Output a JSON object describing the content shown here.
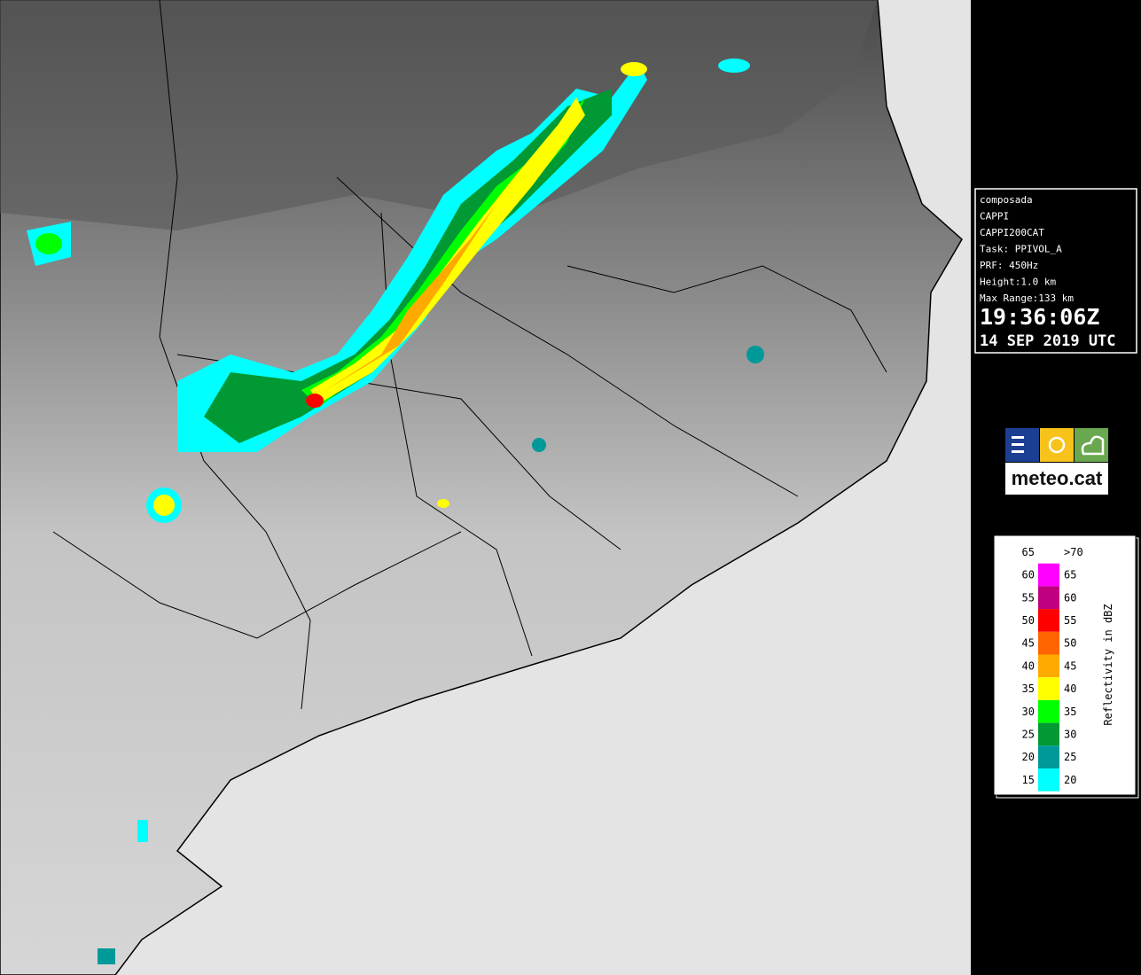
{
  "info": {
    "lines": [
      "composada",
      "CAPPI",
      "CAPPI200CAT",
      "Task: PPIVOL_A",
      "PRF: 450Hz",
      "Height:1.0 km",
      "Max Range:133 km"
    ],
    "time": "19:36:06Z",
    "date": "14 SEP 2019 UTC"
  },
  "logo": {
    "text": "meteo.cat"
  },
  "legend": {
    "title": "Reflectivity in dBZ",
    "rows": [
      {
        "from": "65",
        "to": ">70",
        "color": "#ffffff"
      },
      {
        "from": "60",
        "to": "65",
        "color": "#ff00ff"
      },
      {
        "from": "55",
        "to": "60",
        "color": "#c0007f"
      },
      {
        "from": "50",
        "to": "55",
        "color": "#ff0000"
      },
      {
        "from": "45",
        "to": "50",
        "color": "#ff6400"
      },
      {
        "from": "40",
        "to": "45",
        "color": "#ffaa00"
      },
      {
        "from": "35",
        "to": "40",
        "color": "#ffff00"
      },
      {
        "from": "30",
        "to": "35",
        "color": "#00ff00"
      },
      {
        "from": "25",
        "to": "30",
        "color": "#009933"
      },
      {
        "from": "20",
        "to": "25",
        "color": "#00999a"
      },
      {
        "from": "15",
        "to": "20",
        "color": "#00ffff"
      }
    ]
  }
}
